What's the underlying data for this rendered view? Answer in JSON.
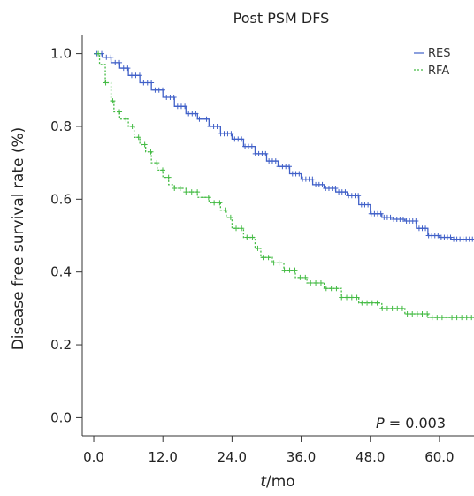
{
  "chart_data": {
    "type": "line",
    "title": "Post PSM DFS",
    "xlabel": {
      "italic": "t",
      "rest": "/mo"
    },
    "ylabel": "Disease free survival rate (%)",
    "xlim": [
      -2,
      66
    ],
    "ylim": [
      -0.05,
      1.05
    ],
    "x_ticks": [
      0,
      12,
      24,
      36,
      48,
      60
    ],
    "x_tick_labels": [
      "0.0",
      "12.0",
      "24.0",
      "36.0",
      "48.0",
      "60.0"
    ],
    "y_ticks": [
      0,
      0.2,
      0.4,
      0.6,
      0.8,
      1.0
    ],
    "y_tick_labels": [
      "0.0",
      "0.2",
      "0.4",
      "0.6",
      "0.8",
      "1.0"
    ],
    "grid": false,
    "legend_position": "top-right",
    "annotation": {
      "italic": "P",
      "rest": " = 0.003"
    },
    "series": [
      {
        "name": "RES",
        "color": "#4060c8",
        "x": [
          0,
          1.5,
          3,
          4.5,
          6,
          8,
          10,
          12,
          14,
          16,
          18,
          20,
          22,
          24,
          26,
          28,
          30,
          32,
          34,
          36,
          38,
          40,
          42,
          44,
          46,
          48,
          50,
          52,
          54,
          56,
          58,
          60,
          62,
          64,
          66
        ],
        "y": [
          1.0,
          0.99,
          0.975,
          0.96,
          0.94,
          0.92,
          0.9,
          0.88,
          0.855,
          0.835,
          0.82,
          0.8,
          0.78,
          0.765,
          0.745,
          0.725,
          0.705,
          0.69,
          0.67,
          0.655,
          0.64,
          0.63,
          0.62,
          0.61,
          0.585,
          0.56,
          0.55,
          0.545,
          0.54,
          0.52,
          0.5,
          0.495,
          0.49,
          0.49,
          0.49
        ]
      },
      {
        "name": "RFA",
        "color": "#44bb44",
        "x": [
          0,
          1,
          2,
          3,
          3.5,
          4.5,
          6,
          7,
          8,
          9,
          10,
          11,
          12,
          13,
          14,
          16,
          18,
          20,
          22,
          23,
          24,
          26,
          28,
          29,
          31,
          33,
          35,
          37,
          40,
          43,
          46,
          50,
          54,
          58,
          62,
          66
        ],
        "y": [
          1.0,
          0.97,
          0.92,
          0.87,
          0.84,
          0.82,
          0.8,
          0.77,
          0.75,
          0.73,
          0.7,
          0.68,
          0.66,
          0.64,
          0.63,
          0.62,
          0.605,
          0.59,
          0.57,
          0.55,
          0.52,
          0.495,
          0.465,
          0.44,
          0.425,
          0.405,
          0.385,
          0.37,
          0.355,
          0.33,
          0.315,
          0.3,
          0.285,
          0.275,
          0.275,
          0.275
        ]
      }
    ]
  }
}
